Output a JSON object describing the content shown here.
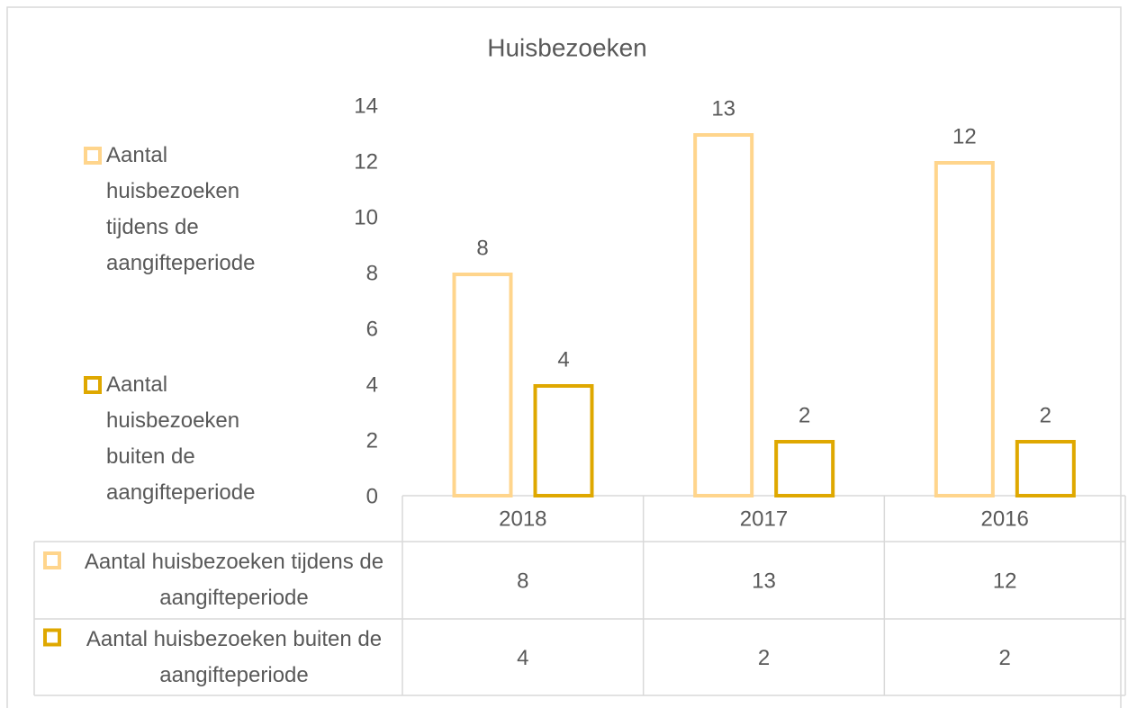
{
  "chart_data": {
    "type": "bar",
    "title": "Huisbezoeken",
    "categories": [
      "2018",
      "2017",
      "2016"
    ],
    "series": [
      {
        "name": "Aantal huisbezoeken tijdens de aangifteperiode",
        "color": "#FFD58C",
        "values": [
          8,
          13,
          12
        ]
      },
      {
        "name": "Aantal huisbezoeken buiten de aangifteperiode",
        "color": "#DFA800",
        "values": [
          4,
          2,
          2
        ]
      }
    ],
    "ylim": [
      0,
      14
    ],
    "yticks": [
      0,
      2,
      4,
      6,
      8,
      10,
      12,
      14
    ],
    "legend": "left",
    "data_table": true
  }
}
